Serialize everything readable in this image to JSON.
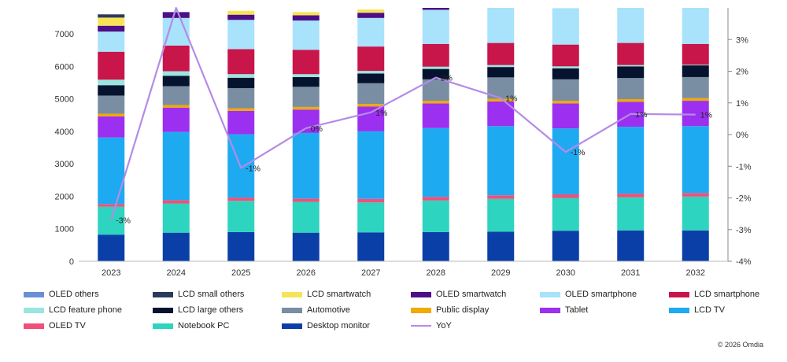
{
  "chart_data": {
    "type": "bar",
    "stacked": true,
    "categories": [
      "2023",
      "2024",
      "2025",
      "2026",
      "2027",
      "2028",
      "2029",
      "2030",
      "2031",
      "2032"
    ],
    "ylim": [
      0,
      7800
    ],
    "yticks": [
      0,
      1000,
      2000,
      3000,
      4000,
      5000,
      6000,
      7000
    ],
    "y2lim": [
      -4,
      4
    ],
    "y2ticks": [
      -4,
      -3,
      -2,
      -1,
      0,
      1,
      2,
      3
    ],
    "y2tick_labels": [
      "-4%",
      "-3%",
      "-2%",
      "-1%",
      "0%",
      "1%",
      "2%",
      "3%"
    ],
    "series": [
      {
        "name": "Desktop monitor",
        "color": "#0b3fa8",
        "values": [
          820,
          880,
          900,
          880,
          890,
          900,
          910,
          940,
          950,
          950
        ]
      },
      {
        "name": "Notebook PC",
        "color": "#2dd4bf",
        "values": [
          860,
          900,
          960,
          950,
          920,
          970,
          1010,
          1010,
          1020,
          1040
        ]
      },
      {
        "name": "OLED TV",
        "color": "#f0507a",
        "values": [
          80,
          100,
          100,
          100,
          110,
          110,
          110,
          110,
          110,
          110
        ]
      },
      {
        "name": "LCD TV",
        "color": "#1eaaf1",
        "values": [
          2050,
          2100,
          1950,
          2020,
          2080,
          2120,
          2130,
          2030,
          2060,
          2060
        ]
      },
      {
        "name": "Tablet",
        "color": "#9b30f0",
        "values": [
          650,
          750,
          720,
          720,
          760,
          760,
          760,
          770,
          770,
          780
        ]
      },
      {
        "name": "Public display",
        "color": "#f2a900",
        "values": [
          80,
          80,
          80,
          80,
          80,
          80,
          80,
          80,
          80,
          80
        ]
      },
      {
        "name": "Automotive",
        "color": "#7a8ea3",
        "values": [
          560,
          580,
          620,
          620,
          640,
          660,
          660,
          660,
          650,
          650
        ]
      },
      {
        "name": "LCD large others",
        "color": "#06132e",
        "values": [
          320,
          320,
          320,
          300,
          300,
          320,
          320,
          340,
          360,
          360
        ]
      },
      {
        "name": "LCD feature phone",
        "color": "#9ae5de",
        "values": [
          170,
          140,
          110,
          90,
          80,
          70,
          60,
          60,
          40,
          20
        ]
      },
      {
        "name": "LCD smartphone",
        "color": "#c8154a",
        "values": [
          860,
          790,
          770,
          750,
          750,
          700,
          680,
          670,
          680,
          640
        ]
      },
      {
        "name": "OLED smartphone",
        "color": "#a8e2fb",
        "values": [
          620,
          850,
          900,
          900,
          880,
          1050,
          1100,
          1120,
          1200,
          1300
        ]
      },
      {
        "name": "OLED smartwatch",
        "color": "#4c0f87",
        "values": [
          180,
          180,
          160,
          160,
          160,
          160,
          0,
          0,
          0,
          0
        ]
      },
      {
        "name": "LCD smartwatch",
        "color": "#f7e357",
        "values": [
          250,
          0,
          120,
          100,
          100,
          0,
          0,
          0,
          0,
          0
        ]
      },
      {
        "name": "LCD small others",
        "color": "#2a3a5c",
        "values": [
          100,
          0,
          0,
          0,
          0,
          0,
          0,
          0,
          0,
          0
        ]
      },
      {
        "name": "OLED others",
        "color": "#6b8fd6",
        "values": [
          0,
          0,
          0,
          0,
          0,
          0,
          0,
          0,
          0,
          0
        ]
      }
    ],
    "line": {
      "name": "YoY",
      "color": "#b48be8",
      "axis": "right",
      "values": [
        -2.7,
        4.0,
        -1.05,
        0.2,
        0.7,
        1.8,
        1.15,
        -0.55,
        0.65,
        0.63
      ],
      "labels": [
        "-3%",
        "",
        "-1%",
        "0%",
        "1%",
        "2%",
        "1%",
        "-1%",
        "1%",
        "1%"
      ]
    },
    "legend_position": "bottom"
  },
  "legend": [
    {
      "name": "OLED others",
      "color": "#6b8fd6",
      "kind": "box"
    },
    {
      "name": "LCD small others",
      "color": "#2a3a5c",
      "kind": "box"
    },
    {
      "name": "LCD smartwatch",
      "color": "#f7e357",
      "kind": "box"
    },
    {
      "name": "OLED smartwatch",
      "color": "#4c0f87",
      "kind": "box"
    },
    {
      "name": "OLED smartphone",
      "color": "#a8e2fb",
      "kind": "box"
    },
    {
      "name": "LCD smartphone",
      "color": "#c8154a",
      "kind": "box"
    },
    {
      "name": "LCD feature phone",
      "color": "#9ae5de",
      "kind": "box"
    },
    {
      "name": "LCD large others",
      "color": "#06132e",
      "kind": "box"
    },
    {
      "name": "Automotive",
      "color": "#7a8ea3",
      "kind": "box"
    },
    {
      "name": "Public display",
      "color": "#f2a900",
      "kind": "box"
    },
    {
      "name": "Tablet",
      "color": "#9b30f0",
      "kind": "box"
    },
    {
      "name": "LCD TV",
      "color": "#1eaaf1",
      "kind": "box"
    },
    {
      "name": "OLED TV",
      "color": "#f0507a",
      "kind": "box"
    },
    {
      "name": "Notebook PC",
      "color": "#2dd4bf",
      "kind": "box"
    },
    {
      "name": "Desktop monitor",
      "color": "#0b3fa8",
      "kind": "box"
    },
    {
      "name": "YoY",
      "color": "#b48be8",
      "kind": "line"
    }
  ],
  "copyright": "© 2026 Omdia"
}
